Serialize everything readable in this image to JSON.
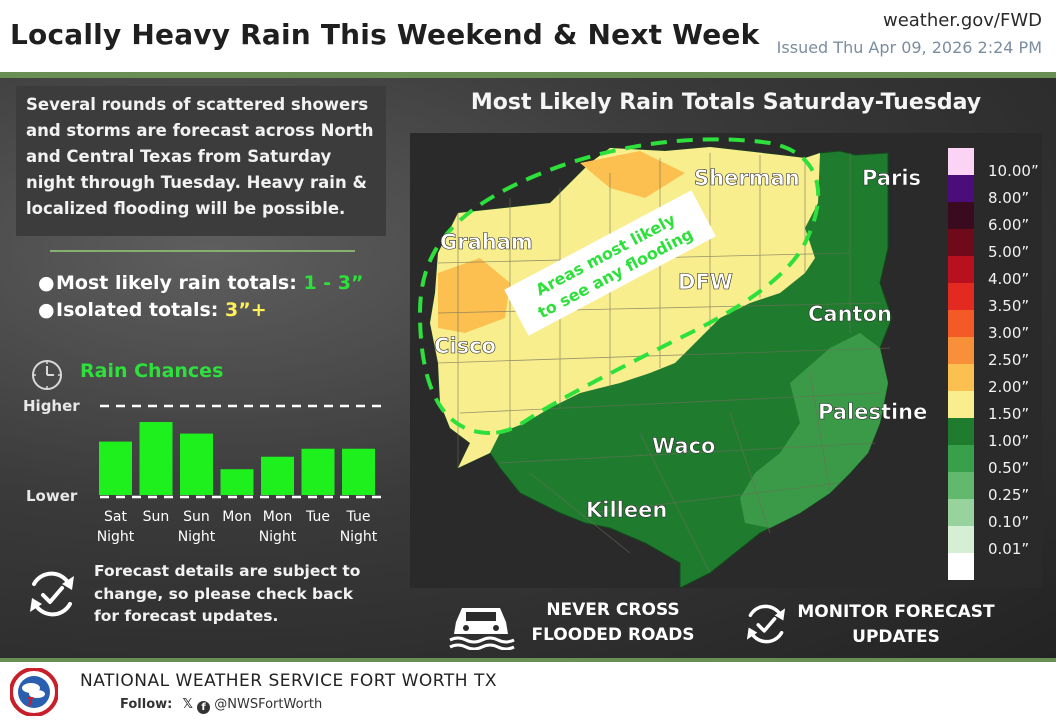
{
  "header": {
    "title": "Locally Heavy Rain This Weekend & Next Week",
    "site": "weather.gov/FWD",
    "issued": "Issued Thu Apr 09, 2026 2:24 PM"
  },
  "summary": "Several rounds of scattered showers and storms are forecast across North and Central Texas from Saturday night through Tuesday. Heavy rain & localized flooding will be possible.",
  "totals": {
    "bullet": "●",
    "likely_label": "Most likely rain totals: ",
    "likely_value": "1 - 3”",
    "isolated_label": "Isolated totals: ",
    "isolated_value": "3”+"
  },
  "rain_chances": {
    "title": "Rain Chances",
    "higher_label": "Higher",
    "lower_label": "Lower",
    "bar_color": "#1ef01e"
  },
  "chart_data": {
    "type": "bar",
    "title": "Rain Chances",
    "categories": [
      [
        "Sat",
        "Night"
      ],
      [
        "Sun"
      ],
      [
        "Sun",
        "Night"
      ],
      [
        "Mon"
      ],
      [
        "Mon",
        "Night"
      ],
      [
        "Tue"
      ],
      [
        "Tue",
        "Night"
      ]
    ],
    "values": [
      0.6,
      0.82,
      0.69,
      0.29,
      0.43,
      0.52,
      0.52
    ],
    "ylim": [
      0,
      1
    ],
    "ylabel_top": "Higher",
    "ylabel_bottom": "Lower"
  },
  "note": "Forecast details are subject to change, so please check back for forecast updates.",
  "map": {
    "title": "Most Likely Rain Totals Saturday-Tuesday",
    "cities": [
      {
        "name": "Sherman"
      },
      {
        "name": "Paris"
      },
      {
        "name": "Graham"
      },
      {
        "name": "DFW"
      },
      {
        "name": "Canton"
      },
      {
        "name": "Cisco"
      },
      {
        "name": "Palestine"
      },
      {
        "name": "Waco"
      },
      {
        "name": "Killeen"
      }
    ],
    "flood_callout": [
      "Areas most likely",
      "to see any flooding"
    ],
    "flood_outline_color": "#2ee03b"
  },
  "legend": {
    "entries": [
      {
        "label": "10.00”",
        "color": "#fbd4f5"
      },
      {
        "label": "8.00”",
        "color": "#4b0d7a"
      },
      {
        "label": "6.00”",
        "color": "#3a0a1e"
      },
      {
        "label": "5.00”",
        "color": "#6e0a1a"
      },
      {
        "label": "4.00”",
        "color": "#b8101e"
      },
      {
        "label": "3.50”",
        "color": "#e22a20"
      },
      {
        "label": "3.00”",
        "color": "#f35a26"
      },
      {
        "label": "2.50”",
        "color": "#f8903a"
      },
      {
        "label": "2.00”",
        "color": "#fbc050"
      },
      {
        "label": "1.50”",
        "color": "#f8ee8e"
      },
      {
        "label": "1.00”",
        "color": "#1f7c2f"
      },
      {
        "label": "0.50”",
        "color": "#38a04a"
      },
      {
        "label": "0.25”",
        "color": "#62b86c"
      },
      {
        "label": "0.10”",
        "color": "#98d29c"
      },
      {
        "label": "0.01”",
        "color": "#d5efd5"
      },
      {
        "label": "",
        "color": "#ffffff"
      }
    ]
  },
  "safety": {
    "flood_roads": [
      "NEVER CROSS",
      "FLOODED ROADS"
    ],
    "monitor": [
      "MONITOR FORECAST",
      "UPDATES"
    ]
  },
  "footer": {
    "org": "NATIONAL WEATHER SERVICE FORT WORTH TX",
    "follow_label": "Follow:",
    "handle": "@NWSFortWorth"
  },
  "icons": [
    "clock-icon",
    "refresh-check-icon",
    "flooded-car-icon",
    "refresh-check-icon",
    "nws-logo-icon",
    "x-logo-icon",
    "facebook-icon"
  ]
}
